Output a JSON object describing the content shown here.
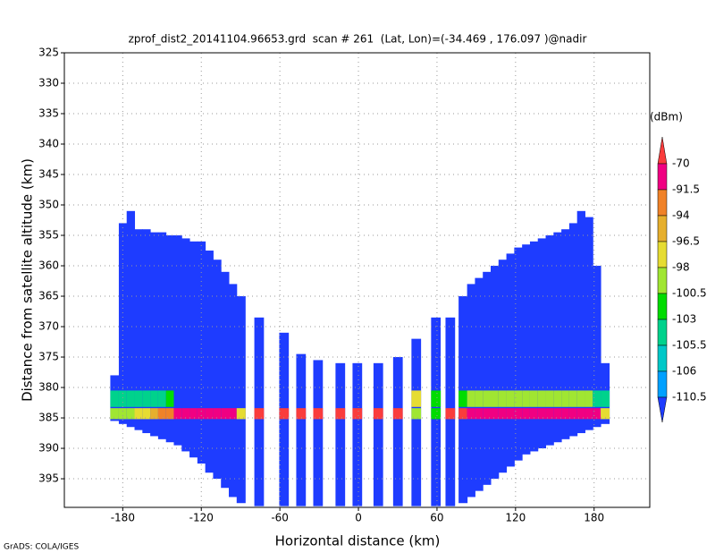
{
  "chart_data": {
    "type": "radar-cross-section",
    "title": "zprof_dist2_20141104.96653.grd  scan # 261  (Lat, Lon)=(-34.469 , 176.097 )@nadir",
    "x_label": "Horizontal distance (km)",
    "y_label": "Distance from satellite altitude (km)",
    "credit": "GrADS: COLA/IGES",
    "xlim": [
      -224.6,
      222.5
    ],
    "xticks": [
      -180,
      -120,
      -60,
      0,
      60,
      120,
      180
    ],
    "ylim": [
      325,
      399.7
    ],
    "yticks": [
      325,
      330,
      335,
      340,
      345,
      350,
      355,
      360,
      365,
      370,
      375,
      380,
      385,
      390,
      395
    ],
    "y_inverted": true,
    "grid": true,
    "colorbar": {
      "unit": "(dBm)",
      "levels": [
        -70,
        -91.5,
        -94,
        -96.5,
        -98,
        -100.5,
        -103,
        -105.5,
        -106,
        -110.5
      ],
      "colors": [
        "#fa3c3c",
        "#f00082",
        "#f08228",
        "#e6af2d",
        "#e6dc32",
        "#a0e632",
        "#00dc00",
        "#00d28c",
        "#00c8c8",
        "#00a0ff",
        "#1e3cff"
      ]
    },
    "columns": {
      "x": [
        -186,
        -180,
        -174,
        -168,
        -162,
        -156,
        -150,
        -144,
        -138,
        -132,
        -126,
        -120,
        -114,
        -108,
        -102,
        -96,
        -90,
        -76,
        -57,
        -44,
        -31,
        -14,
        -1,
        15,
        30,
        44,
        59,
        70,
        80,
        86,
        92,
        98,
        104,
        110,
        116,
        122,
        128,
        134,
        140,
        146,
        152,
        158,
        164,
        170,
        176,
        182,
        188
      ],
      "top": [
        378,
        353,
        351,
        354,
        354,
        354.5,
        354.5,
        355,
        355,
        355.5,
        356,
        356,
        357.5,
        359,
        361,
        363,
        365,
        368.5,
        371,
        374.5,
        375.5,
        376,
        376,
        376,
        375,
        372,
        368.5,
        368.5,
        365,
        363,
        362,
        361,
        360,
        359,
        358,
        357,
        356.5,
        356,
        355.5,
        355,
        354.5,
        354,
        353,
        351,
        352,
        360,
        376
      ],
      "bottom": [
        385.5,
        386,
        386.5,
        387,
        387.5,
        388,
        388.5,
        389,
        389.5,
        390.5,
        391.5,
        392.5,
        394,
        395,
        396.5,
        398,
        399,
        399.5,
        399.5,
        399.5,
        399.5,
        399.5,
        399.5,
        399.5,
        399.5,
        399.5,
        399.5,
        399.5,
        399,
        398,
        397,
        396,
        395,
        394,
        393,
        392,
        391,
        390.5,
        390,
        389.5,
        389,
        388.5,
        388,
        387.5,
        387,
        386.5,
        386
      ],
      "background": -111,
      "surface": [
        -100,
        -100,
        -100,
        -98,
        -98,
        -96,
        -92,
        -92,
        -80,
        -80,
        -80,
        -80,
        -80,
        -80,
        -80,
        -80,
        -98,
        -65,
        -65,
        -65,
        -65,
        -65,
        -65,
        -65,
        -65,
        -99,
        -103,
        -65,
        -65,
        -80,
        -80,
        -80,
        -80,
        -80,
        -80,
        -80,
        -80,
        -80,
        -80,
        -80,
        -80,
        -80,
        -80,
        -80,
        -80,
        -80,
        -98
      ],
      "upper": [
        -105,
        -105,
        -105,
        -105,
        -105,
        -105,
        -105,
        -103,
        null,
        null,
        null,
        null,
        null,
        null,
        null,
        null,
        null,
        null,
        null,
        null,
        null,
        null,
        null,
        null,
        null,
        -98,
        -103,
        null,
        -103,
        -100,
        -100,
        -100,
        -100,
        -100,
        -100,
        -100,
        -100,
        -100,
        -100,
        -100,
        -100,
        -100,
        -100,
        -100,
        -100,
        -105,
        -105
      ]
    }
  }
}
